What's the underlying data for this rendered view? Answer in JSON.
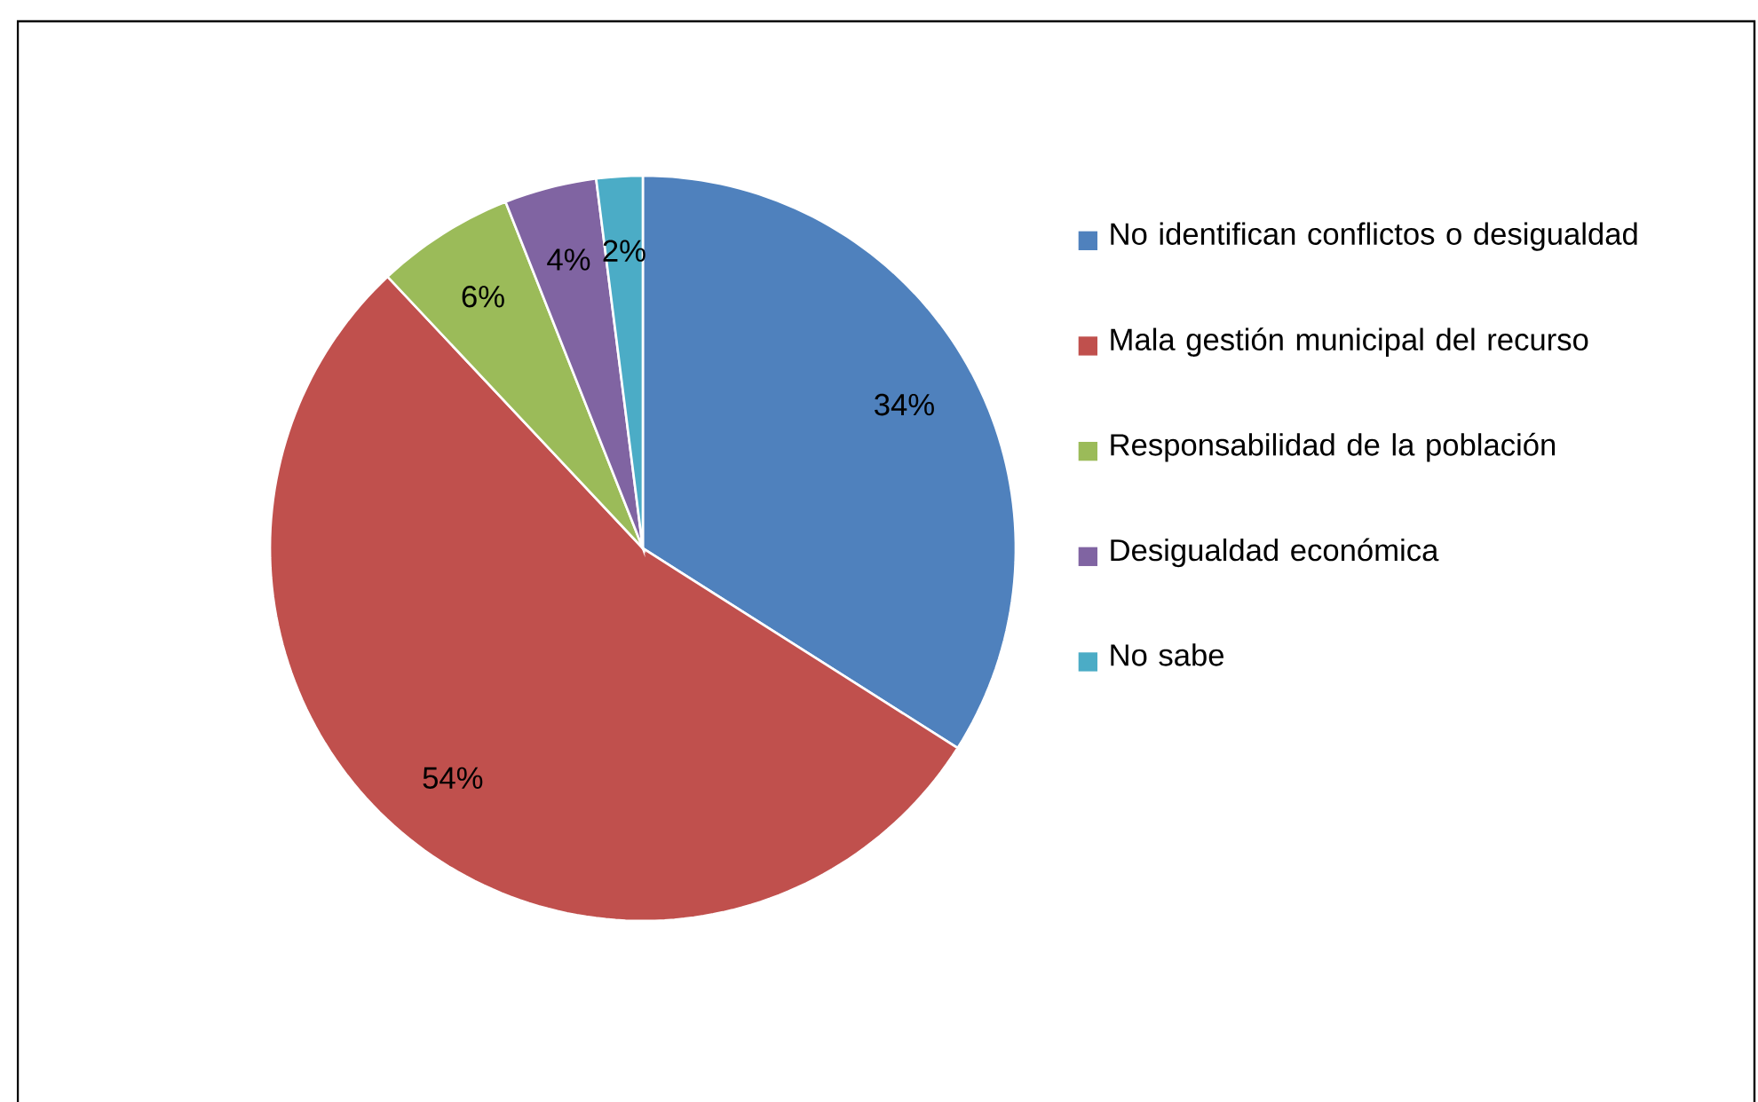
{
  "chart_data": {
    "type": "pie",
    "categories": [
      "No identifican conflictos o desigualdad",
      "Mala gestión municipal del recurso",
      "Responsabilidad de la población",
      "Desigualdad económica",
      "No sabe"
    ],
    "values": [
      34,
      54,
      6,
      4,
      2
    ],
    "colors": [
      "#4f81bd",
      "#c0504d",
      "#9bbb59",
      "#8064a2",
      "#4bacc6"
    ],
    "value_labels": [
      "34%",
      "54%",
      "6%",
      "4%",
      "2%"
    ],
    "legend": "right"
  }
}
